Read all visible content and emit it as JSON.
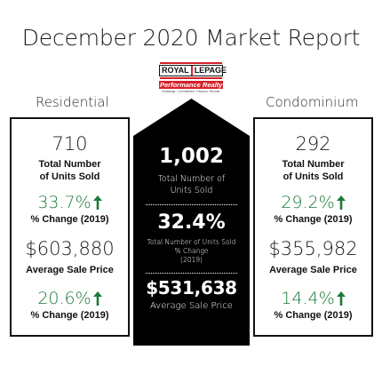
{
  "title": "December 2020 Market Report",
  "logo": {
    "brand_left": "ROYAL",
    "brand_right": "LEPAGE",
    "sub": "Performance Realty",
    "tagline": "Challenge. Commitment. Passion. Results.",
    "accent_color": "#d6202a"
  },
  "residential": {
    "heading": "Residential",
    "units_sold": "710",
    "units_label": [
      "Total Number",
      "of Units Sold"
    ],
    "units_change": "33.7%",
    "units_change_label": "% Change (2019)",
    "avg_price": "$603,880",
    "avg_price_label": "Average Sale Price",
    "price_change": "20.6%",
    "price_change_label": "% Change (2019)"
  },
  "total": {
    "units_sold": "1,002",
    "units_label": [
      "Total Number of",
      "Units Sold"
    ],
    "units_change": "32.4%",
    "units_change_label": [
      "Total Number of Units Sold",
      "% Change",
      "(2019)"
    ],
    "avg_price": "$531,638",
    "avg_price_label": "Average Sale Price"
  },
  "condominium": {
    "heading": "Condominium",
    "units_sold": "292",
    "units_label": [
      "Total Number",
      "of Units Sold"
    ],
    "units_change": "29.2%",
    "units_change_label": "% Change (2019)",
    "avg_price": "$355,982",
    "avg_price_label": "Average Sale Price",
    "price_change": "14.4%",
    "price_change_label": "% Change (2019)"
  },
  "colors": {
    "positive_change": "#1d7a3a",
    "house_fill": "#000000"
  },
  "icons": {
    "change_indicator": "arrow-up-icon"
  }
}
